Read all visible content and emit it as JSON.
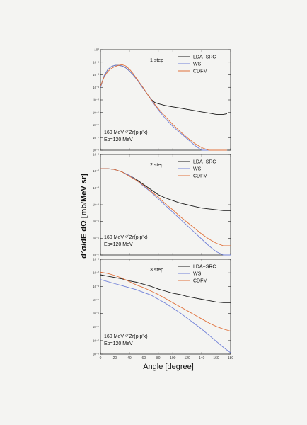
{
  "chart_data": {
    "type": "line",
    "xlabel": "Angle [degree]",
    "ylabel": "d²σ/dE dΩ [mb/MeV sr]",
    "xlim": [
      0,
      180
    ],
    "xticks": [
      "0",
      "20",
      "40",
      "60",
      "80",
      "100",
      "120",
      "140",
      "160",
      "180"
    ],
    "colors": {
      "LDA+SRC": "#1a1a1a",
      "WS": "#6f7fd8",
      "CDFM": "#e0703a"
    },
    "panels": [
      {
        "label": "1 step",
        "reaction": "160 MeV ⁹⁰Zr(p,p'x)",
        "energy": "Ep=120 MeV",
        "yticks": [
          "10⁰",
          "10⁻¹",
          "10⁻²",
          "10⁻³",
          "10⁻⁴",
          "10⁻⁵",
          "10⁻⁶",
          "10⁻⁷",
          "10⁻⁸"
        ],
        "ylim_log": [
          -8,
          0
        ],
        "legend": [
          "LDA+SRC",
          "WS",
          "CDFM"
        ],
        "series": [
          {
            "name": "LDA+SRC",
            "x": [
              0,
              5,
              10,
              15,
              20,
              25,
              30,
              35,
              40,
              45,
              50,
              55,
              60,
              65,
              70,
              75,
              80,
              90,
              100,
              110,
              120,
              130,
              140,
              150,
              160,
              170,
              175
            ],
            "logy": [
              -3.0,
              -2.1,
              -1.6,
              -1.35,
              -1.25,
              -1.25,
              -1.3,
              -1.45,
              -1.7,
              -2.0,
              -2.35,
              -2.75,
              -3.15,
              -3.55,
              -3.95,
              -4.2,
              -4.3,
              -4.45,
              -4.55,
              -4.65,
              -4.75,
              -4.85,
              -4.95,
              -5.05,
              -5.15,
              -5.15,
              -5.1
            ]
          },
          {
            "name": "WS",
            "x": [
              0,
              5,
              10,
              15,
              20,
              25,
              30,
              35,
              40,
              45,
              50,
              55,
              60,
              65,
              70,
              75,
              80,
              90,
              100,
              110,
              120,
              130,
              140,
              150,
              160,
              170,
              175
            ],
            "logy": [
              -3.0,
              -2.1,
              -1.6,
              -1.35,
              -1.25,
              -1.25,
              -1.3,
              -1.45,
              -1.7,
              -2.0,
              -2.35,
              -2.75,
              -3.15,
              -3.55,
              -4.0,
              -4.4,
              -4.8,
              -5.5,
              -6.1,
              -6.6,
              -7.1,
              -7.6,
              -8.0,
              -8.3,
              -8.6,
              -8.8,
              -8.9
            ]
          },
          {
            "name": "CDFM",
            "x": [
              0,
              5,
              10,
              15,
              20,
              25,
              30,
              35,
              40,
              45,
              50,
              55,
              60,
              65,
              70,
              75,
              80,
              90,
              100,
              110,
              120,
              130,
              140,
              150,
              160,
              170,
              175
            ],
            "logy": [
              -2.9,
              -2.2,
              -1.75,
              -1.5,
              -1.35,
              -1.25,
              -1.2,
              -1.3,
              -1.55,
              -1.9,
              -2.3,
              -2.7,
              -3.1,
              -3.55,
              -3.95,
              -4.35,
              -4.7,
              -5.35,
              -5.95,
              -6.5,
              -7.0,
              -7.45,
              -7.8,
              -8.05,
              -8.2,
              -8.25,
              -8.25
            ]
          }
        ]
      },
      {
        "label": "2 step",
        "reaction": "160 MeV ⁹⁰Zr(p,p'x)",
        "energy": "Ep=120 MeV",
        "yticks": [
          "10⁻¹",
          "10⁻²",
          "10⁻³",
          "10⁻⁴",
          "10⁻⁵",
          "10⁻⁶",
          "10⁻⁷"
        ],
        "ylim_log": [
          -7,
          -1
        ],
        "legend": [
          "LDA+SRC",
          "WS",
          "CDFM"
        ],
        "series": [
          {
            "name": "LDA+SRC",
            "x": [
              0,
              10,
              20,
              30,
              40,
              50,
              60,
              70,
              80,
              90,
              100,
              110,
              120,
              130,
              140,
              150,
              160,
              170,
              180
            ],
            "logy": [
              -1.85,
              -1.85,
              -1.9,
              -2.05,
              -2.25,
              -2.5,
              -2.8,
              -3.1,
              -3.4,
              -3.6,
              -3.75,
              -3.9,
              -4.0,
              -4.1,
              -4.2,
              -4.25,
              -4.3,
              -4.35,
              -4.35
            ]
          },
          {
            "name": "WS",
            "x": [
              0,
              10,
              20,
              30,
              40,
              50,
              60,
              70,
              80,
              90,
              100,
              110,
              120,
              130,
              140,
              150,
              160,
              170,
              180
            ],
            "logy": [
              -1.85,
              -1.85,
              -1.9,
              -2.05,
              -2.25,
              -2.55,
              -2.9,
              -3.25,
              -3.65,
              -4.05,
              -4.45,
              -4.85,
              -5.25,
              -5.65,
              -6.05,
              -6.45,
              -6.8,
              -7.15,
              -7.4
            ]
          },
          {
            "name": "CDFM",
            "x": [
              0,
              10,
              20,
              30,
              40,
              50,
              60,
              70,
              80,
              90,
              100,
              110,
              120,
              130,
              140,
              150,
              160,
              170,
              180
            ],
            "logy": [
              -1.85,
              -1.85,
              -1.9,
              -2.05,
              -2.3,
              -2.55,
              -2.85,
              -3.2,
              -3.55,
              -3.95,
              -4.3,
              -4.7,
              -5.05,
              -5.4,
              -5.75,
              -6.05,
              -6.3,
              -6.45,
              -6.45
            ]
          }
        ]
      },
      {
        "label": "3 step",
        "reaction": "160 MeV ⁹⁰Zr(p,p'x)",
        "energy": "Ep=120 MeV",
        "yticks": [
          "10⁻¹",
          "10⁻²",
          "10⁻³",
          "10⁻⁴",
          "10⁻⁵",
          "10⁻⁶",
          "10⁻⁷",
          "10⁻⁸"
        ],
        "ylim_log": [
          -8,
          -1
        ],
        "legend": [
          "LDA+SRC",
          "WS",
          "CDFM"
        ],
        "series": [
          {
            "name": "LDA+SRC",
            "x": [
              0,
              10,
              20,
              30,
              40,
              50,
              60,
              70,
              80,
              90,
              100,
              110,
              120,
              130,
              140,
              150,
              160,
              170,
              180
            ],
            "logy": [
              -2.15,
              -2.25,
              -2.35,
              -2.45,
              -2.6,
              -2.7,
              -2.85,
              -3.0,
              -3.2,
              -3.35,
              -3.5,
              -3.6,
              -3.75,
              -3.85,
              -3.95,
              -4.05,
              -4.15,
              -4.2,
              -4.2
            ]
          },
          {
            "name": "WS",
            "x": [
              0,
              10,
              20,
              30,
              40,
              50,
              60,
              70,
              80,
              90,
              100,
              110,
              120,
              130,
              140,
              150,
              160,
              170,
              180
            ],
            "logy": [
              -2.5,
              -2.65,
              -2.8,
              -2.95,
              -3.1,
              -3.25,
              -3.45,
              -3.65,
              -3.95,
              -4.25,
              -4.6,
              -4.95,
              -5.35,
              -5.75,
              -6.15,
              -6.6,
              -7.05,
              -7.5,
              -7.9
            ]
          },
          {
            "name": "CDFM",
            "x": [
              0,
              10,
              20,
              30,
              40,
              50,
              60,
              70,
              80,
              90,
              100,
              110,
              120,
              130,
              140,
              150,
              160,
              170,
              180
            ],
            "logy": [
              -1.95,
              -2.05,
              -2.2,
              -2.4,
              -2.65,
              -2.9,
              -3.1,
              -3.35,
              -3.6,
              -3.9,
              -4.2,
              -4.5,
              -4.8,
              -5.1,
              -5.4,
              -5.7,
              -5.95,
              -6.15,
              -6.3
            ]
          }
        ]
      }
    ]
  }
}
